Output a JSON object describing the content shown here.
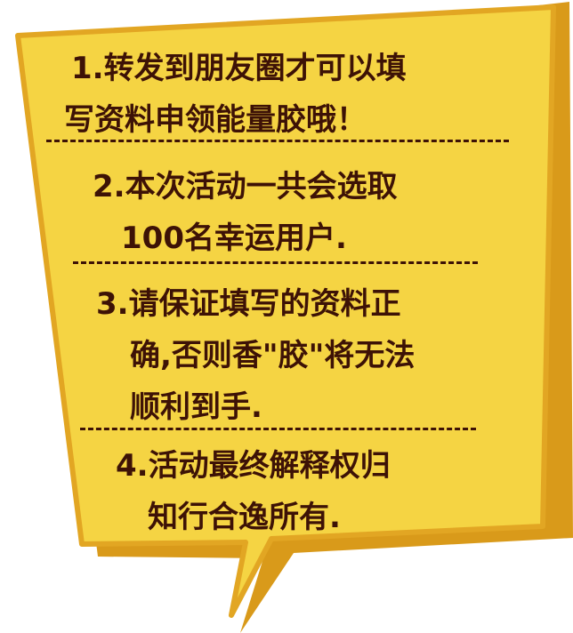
{
  "notice": {
    "rules": [
      {
        "lines": [
          "1.转发到朋友圈才可以填",
          "写资料申领能量胶哦！"
        ]
      },
      {
        "lines": [
          "2.本次活动一共会选取",
          "100名幸运用户."
        ]
      },
      {
        "lines": [
          "3.请保证填写的资料正",
          "确,否则香\"胶\"将无法",
          "顺利到手."
        ]
      },
      {
        "lines": [
          "4.活动最终解释权归",
          "知行合逸所有."
        ]
      }
    ]
  },
  "colors": {
    "shadow": "#d99a1a",
    "bubble": "#f5d443",
    "outline": "#e2a623",
    "text": "#3d1206"
  }
}
